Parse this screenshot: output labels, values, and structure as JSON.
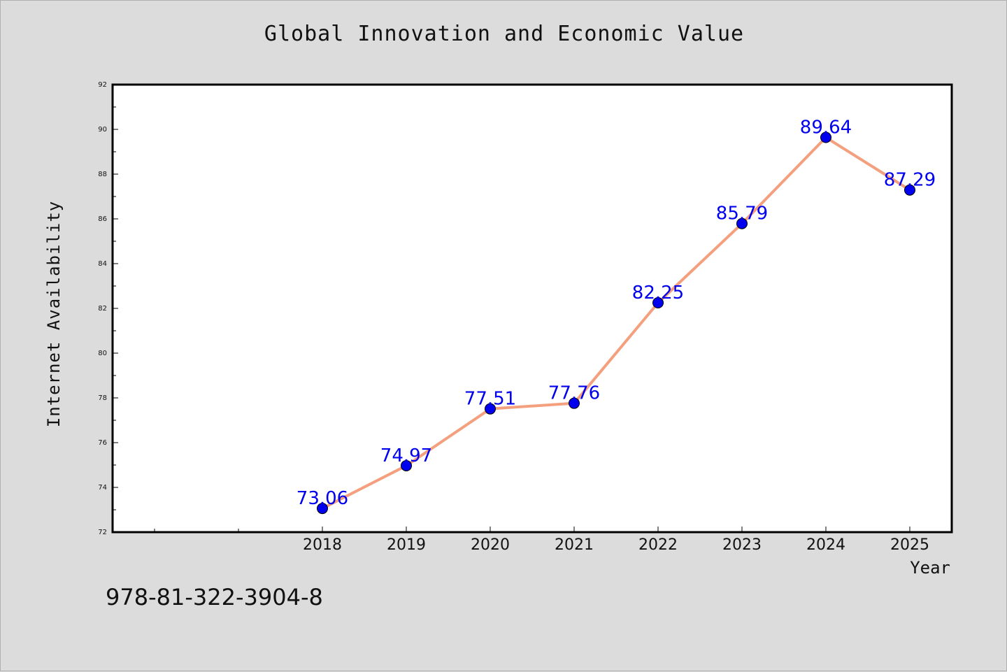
{
  "chart_data": {
    "type": "line",
    "title": "Global Innovation and Economic Value",
    "xlabel": "Year",
    "ylabel": "Internet Availability",
    "categories": [
      "2018",
      "2019",
      "2020",
      "2021",
      "2022",
      "2023",
      "2024",
      "2025"
    ],
    "values": [
      73.06,
      74.97,
      77.51,
      77.76,
      82.25,
      85.79,
      89.64,
      87.29
    ],
    "value_labels": [
      "73.06",
      "74.97",
      "77.51",
      "77.76",
      "82.25",
      "85.79",
      "89.64",
      "87.29"
    ],
    "ylim": [
      72,
      92
    ],
    "yticks": [
      72,
      74,
      76,
      78,
      80,
      82,
      84,
      86,
      88,
      90,
      92
    ],
    "ytick_labels": [
      "72",
      "74",
      "76",
      "78",
      "80",
      "82",
      "84",
      "86",
      "88",
      "90",
      "92"
    ],
    "grid": false,
    "colors": {
      "line": "#f4a07e",
      "marker": "#0000ee",
      "label": "#0000ee"
    }
  },
  "footer": {
    "isbn": "978-81-322-3904-8"
  }
}
